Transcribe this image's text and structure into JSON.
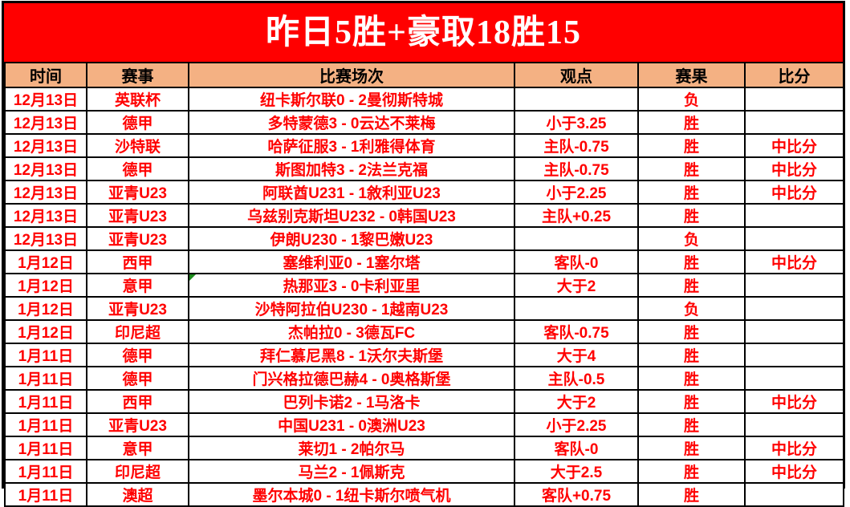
{
  "banner": {
    "title": "昨日5胜+豪取18胜15"
  },
  "chart_data": {
    "type": "table",
    "title": "昨日5胜+豪取18胜15",
    "columns": [
      "时间",
      "赛事",
      "比赛场次",
      "观点",
      "赛果",
      "比分"
    ],
    "rows": [
      [
        "12月13日",
        "英联杯",
        "纽卡斯尔联0 - 2曼彻斯特城",
        "",
        "负",
        ""
      ],
      [
        "12月13日",
        "德甲",
        "多特蒙德3 - 0云达不莱梅",
        "小于3.25",
        "胜",
        ""
      ],
      [
        "12月13日",
        "沙特联",
        "哈萨征服3 - 1利雅得体育",
        "主队-0.75",
        "胜",
        "中比分"
      ],
      [
        "12月13日",
        "德甲",
        "斯图加特3 - 2法兰克福",
        "主队-0.75",
        "胜",
        "中比分"
      ],
      [
        "12月13日",
        "亚青U23",
        "阿联酋U231 - 1敘利亚U23",
        "小于2.25",
        "胜",
        "中比分"
      ],
      [
        "12月13日",
        "亚青U23",
        "乌兹别克斯坦U232 - 0韩国U23",
        "主队+0.25",
        "胜",
        ""
      ],
      [
        "12月13日",
        "亚青U23",
        "伊朗U230 - 1黎巴嫩U23",
        "",
        "负",
        ""
      ],
      [
        "1月12日",
        "西甲",
        "塞维利亚0 - 1塞尔塔",
        "客队-0",
        "胜",
        "中比分"
      ],
      [
        "1月12日",
        "意甲",
        "热那亚3 - 0卡利亚里",
        "大于2",
        "胜",
        ""
      ],
      [
        "1月12日",
        "亚青U23",
        "沙特阿拉伯U230 - 1越南U23",
        "",
        "负",
        ""
      ],
      [
        "1月12日",
        "印尼超",
        "杰帕拉0 - 3德瓦FC",
        "客队-0.75",
        "胜",
        ""
      ],
      [
        "1月11日",
        "德甲",
        "拜仁慕尼黑8 - 1沃尔夫斯堡",
        "大于4",
        "胜",
        ""
      ],
      [
        "1月11日",
        "德甲",
        "门兴格拉德巴赫4 - 0奥格斯堡",
        "主队-0.5",
        "胜",
        ""
      ],
      [
        "1月11日",
        "西甲",
        "巴列卡诺2 - 1马洛卡",
        "大于2",
        "胜",
        "中比分"
      ],
      [
        "1月11日",
        "亚青U23",
        "中国U231 - 0澳洲U23",
        "小于2.25",
        "胜",
        ""
      ],
      [
        "1月11日",
        "意甲",
        "莱切1 - 2帕尔马",
        "客队-0",
        "胜",
        "中比分"
      ],
      [
        "1月11日",
        "印尼超",
        "马兰2 - 1佩斯克",
        "大于2.5",
        "胜",
        "中比分"
      ],
      [
        "1月11日",
        "澳超",
        "墨尔本城0 - 1纽卡斯尔喷气机",
        "客队+0.75",
        "胜",
        ""
      ]
    ],
    "result_labels": {
      "win": "胜",
      "loss": "负"
    },
    "comment_cells": [
      {
        "row": 8,
        "col": 2
      }
    ],
    "layout": {
      "grid": true,
      "title_position": "top-banner"
    }
  },
  "colors": {
    "banner_bg": "#FF0000",
    "banner_text": "#FFFFFF",
    "header_bg": "#F4B183",
    "data_text": "#FF0000",
    "win_bg": "#FFFF00",
    "loss_text": "#262626",
    "border": "#000000",
    "comment_marker": "#1E8C1E"
  }
}
